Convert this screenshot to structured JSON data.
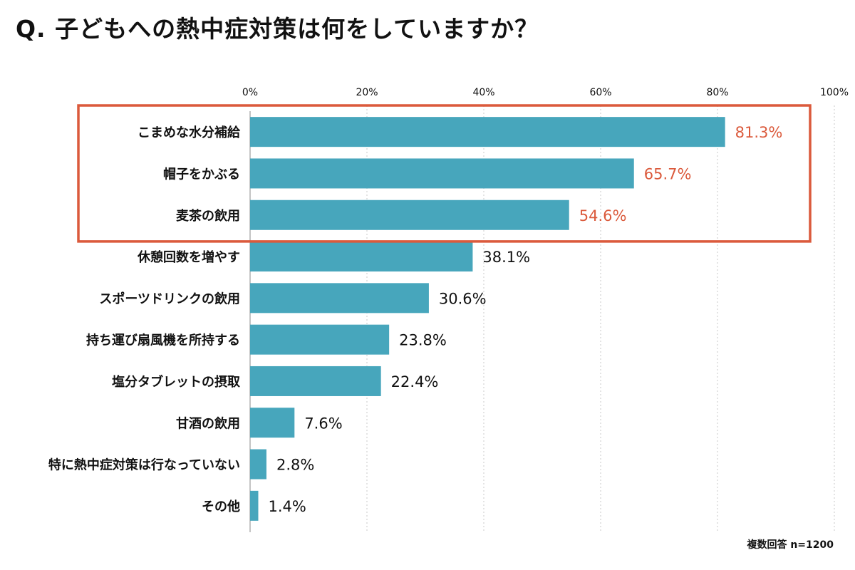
{
  "title": "Q. 子どもへの熱中症対策は何をしていますか？",
  "footnote": "複数回答 n=1200",
  "colors": {
    "bar": "#47A6BC",
    "highlight": "#DB5A3C",
    "text": "#111111",
    "grid": "#C8C8C8"
  },
  "chart_data": {
    "type": "bar",
    "orientation": "horizontal",
    "title": "Q. 子どもへの熱中症対策は何をしていますか？",
    "xlabel": "",
    "ylabel": "",
    "xlim": [
      0,
      100
    ],
    "ticks": [
      0,
      20,
      40,
      60,
      80,
      100
    ],
    "tick_labels": [
      "0%",
      "20%",
      "40%",
      "60%",
      "80%",
      "100%"
    ],
    "grid": true,
    "unit": "%",
    "categories": [
      "こまめな水分補給",
      "帽子をかぶる",
      "麦茶の飲用",
      "休憩回数を増やす",
      "スポーツドリンクの飲用",
      "持ち運び扇風機を所持する",
      "塩分タブレットの摂取",
      "甘酒の飲用",
      "特に熱中症対策は行なっていない",
      "その他"
    ],
    "values": [
      81.3,
      65.7,
      54.6,
      38.1,
      30.6,
      23.8,
      22.4,
      7.6,
      2.8,
      1.4
    ],
    "highlighted_count": 3
  }
}
